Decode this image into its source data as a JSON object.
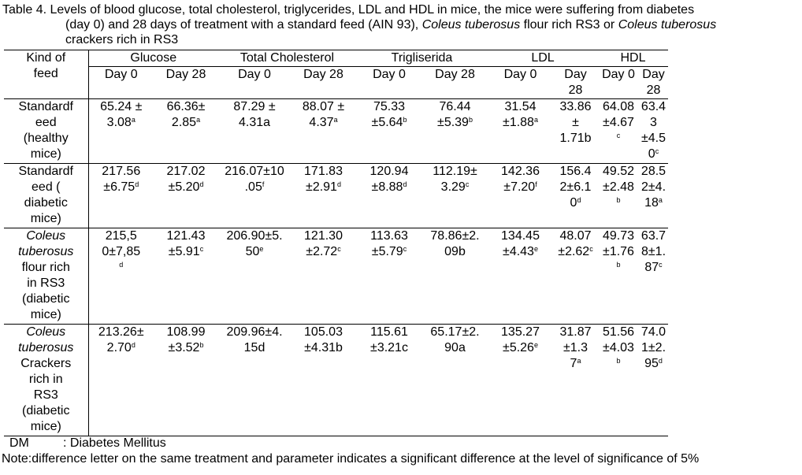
{
  "caption": {
    "line1": "Table 4. Levels of blood glucose, total cholesterol, triglycerides, LDL and HDL in mice, the mice were suffering from diabetes",
    "line2_a": "(day 0) and 28 days of treatment with a standard feed (AIN 93), ",
    "line2_b": "Coleus tuberosus",
    "line2_c": " flour rich RS3 or ",
    "line2_d": "Coleus tuberosus",
    "line3": "crackers rich in RS3"
  },
  "headers": {
    "kind": [
      "Kind of",
      "feed"
    ],
    "groups": [
      "Glucose",
      "Total Cholesterol",
      "Trigliserida",
      "LDL",
      "HDL"
    ],
    "days": [
      [
        "Day 0"
      ],
      [
        "Day 28"
      ],
      [
        "Day 0"
      ],
      [
        "Day 28"
      ],
      [
        "Day 0"
      ],
      [
        "Day 28"
      ],
      [
        "Day 0"
      ],
      [
        "Day",
        "28"
      ],
      [
        "Day 0"
      ],
      [
        "Day",
        "28"
      ]
    ]
  },
  "rows": [
    {
      "kind": [
        {
          "t": "Standardf"
        },
        {
          "t": "eed"
        },
        {
          "t": "(healthy"
        },
        {
          "t": "mice)"
        }
      ],
      "cells": [
        [
          [
            "65.24 ±",
            ""
          ],
          [
            "3.08",
            "a"
          ]
        ],
        [
          [
            "66.36±",
            ""
          ],
          [
            "2.85",
            "a"
          ]
        ],
        [
          [
            "87.29 ±",
            ""
          ],
          [
            "4.31a",
            ""
          ]
        ],
        [
          [
            "88.07 ±",
            ""
          ],
          [
            "4.37",
            "a"
          ]
        ],
        [
          [
            "75.33",
            ""
          ],
          [
            "±5.64",
            "b"
          ]
        ],
        [
          [
            "76.44",
            ""
          ],
          [
            "±5.39",
            "b"
          ]
        ],
        [
          [
            "31.54",
            ""
          ],
          [
            "±1.88",
            "a"
          ]
        ],
        [
          [
            "33.86",
            ""
          ],
          [
            "±",
            ""
          ],
          [
            "1.71b",
            ""
          ]
        ],
        [
          [
            "64.08",
            ""
          ],
          [
            "±4.67",
            ""
          ],
          [
            "",
            "c"
          ]
        ],
        [
          [
            "63.4",
            ""
          ],
          [
            "3",
            ""
          ],
          [
            "±4.5",
            ""
          ],
          [
            "0",
            "c"
          ]
        ]
      ]
    },
    {
      "kind": [
        {
          "t": "Standardf"
        },
        {
          "t": "eed  ("
        },
        {
          "t": "diabetic"
        },
        {
          "t": "mice)"
        }
      ],
      "cells": [
        [
          [
            "217.56",
            ""
          ],
          [
            "±6.75",
            "d"
          ]
        ],
        [
          [
            "217.02",
            ""
          ],
          [
            "±5.20",
            "d"
          ]
        ],
        [
          [
            "216.07±10",
            ""
          ],
          [
            ".05",
            "f"
          ]
        ],
        [
          [
            "171.83",
            ""
          ],
          [
            "±2.91",
            "d"
          ]
        ],
        [
          [
            "120.94",
            ""
          ],
          [
            "±8.88",
            "d"
          ]
        ],
        [
          [
            "112.19±",
            ""
          ],
          [
            "3.29",
            "c"
          ]
        ],
        [
          [
            "142.36",
            ""
          ],
          [
            "±7.20",
            "f"
          ]
        ],
        [
          [
            "156.4",
            ""
          ],
          [
            "2±6.1",
            ""
          ],
          [
            "0",
            "d"
          ]
        ],
        [
          [
            "49.52",
            ""
          ],
          [
            "±2.48",
            ""
          ],
          [
            "",
            "b"
          ]
        ],
        [
          [
            "28.5",
            ""
          ],
          [
            "2±4.",
            ""
          ],
          [
            "18",
            "a"
          ]
        ]
      ]
    },
    {
      "kind": [
        {
          "t": "Coleus",
          "i": true
        },
        {
          "t": "tuberosus",
          "i": true
        },
        {
          "t": "flour rich"
        },
        {
          "t": "in RS3"
        },
        {
          "t": "(diabetic"
        },
        {
          "t": "mice)"
        }
      ],
      "cells": [
        [
          [
            "215,5",
            ""
          ],
          [
            "0±7,85",
            ""
          ],
          [
            "",
            "d"
          ]
        ],
        [
          [
            "121.43",
            ""
          ],
          [
            "±5.91",
            "c"
          ]
        ],
        [
          [
            "206.90±5.",
            ""
          ],
          [
            "50",
            "e"
          ]
        ],
        [
          [
            "121.30",
            ""
          ],
          [
            "±2.72",
            "c"
          ]
        ],
        [
          [
            "113.63",
            ""
          ],
          [
            "±5.79",
            "c"
          ]
        ],
        [
          [
            "78.86±2.",
            ""
          ],
          [
            "09b",
            ""
          ]
        ],
        [
          [
            "134.45",
            ""
          ],
          [
            "±4.43",
            "e"
          ]
        ],
        [
          [
            "48.07",
            ""
          ],
          [
            "±2.62",
            "c"
          ]
        ],
        [
          [
            "49.73",
            ""
          ],
          [
            "±1.76",
            ""
          ],
          [
            "",
            "b"
          ]
        ],
        [
          [
            "63.7",
            ""
          ],
          [
            "8±1.",
            ""
          ],
          [
            "87",
            "c"
          ]
        ]
      ]
    },
    {
      "kind": [
        {
          "t": "Coleus",
          "i": true
        },
        {
          "t": "tuberosus",
          "i": true
        },
        {
          "t": "Crackers"
        },
        {
          "t": "rich in"
        },
        {
          "t": "RS3"
        },
        {
          "t": "(diabetic"
        },
        {
          "t": "mice)"
        }
      ],
      "cells": [
        [
          [
            "213.26±",
            ""
          ],
          [
            "2.70",
            "d"
          ]
        ],
        [
          [
            "108.99",
            ""
          ],
          [
            "±3.52",
            "b"
          ]
        ],
        [
          [
            "209.96±4.",
            ""
          ],
          [
            "15d",
            ""
          ]
        ],
        [
          [
            "105.03",
            ""
          ],
          [
            "±4.31b",
            ""
          ]
        ],
        [
          [
            "115.61",
            ""
          ],
          [
            "±3.21c",
            ""
          ]
        ],
        [
          [
            "65.17±2.",
            ""
          ],
          [
            "90a",
            ""
          ]
        ],
        [
          [
            "135.27",
            ""
          ],
          [
            "±5.26",
            "e"
          ]
        ],
        [
          [
            "31.87",
            ""
          ],
          [
            "±1.3",
            ""
          ],
          [
            "7",
            "a"
          ]
        ],
        [
          [
            "51.56",
            ""
          ],
          [
            "±4.03",
            ""
          ],
          [
            "",
            "b"
          ]
        ],
        [
          [
            "74.0",
            ""
          ],
          [
            "1±2.",
            ""
          ],
          [
            "95",
            "d"
          ]
        ]
      ]
    }
  ],
  "footer": {
    "dm_abbr": "DM",
    "dm_text": ": Diabetes Mellitus",
    "note": "Note:difference letter on the same treatment and parameter indicates a significant difference at the level of significance of 5%"
  }
}
